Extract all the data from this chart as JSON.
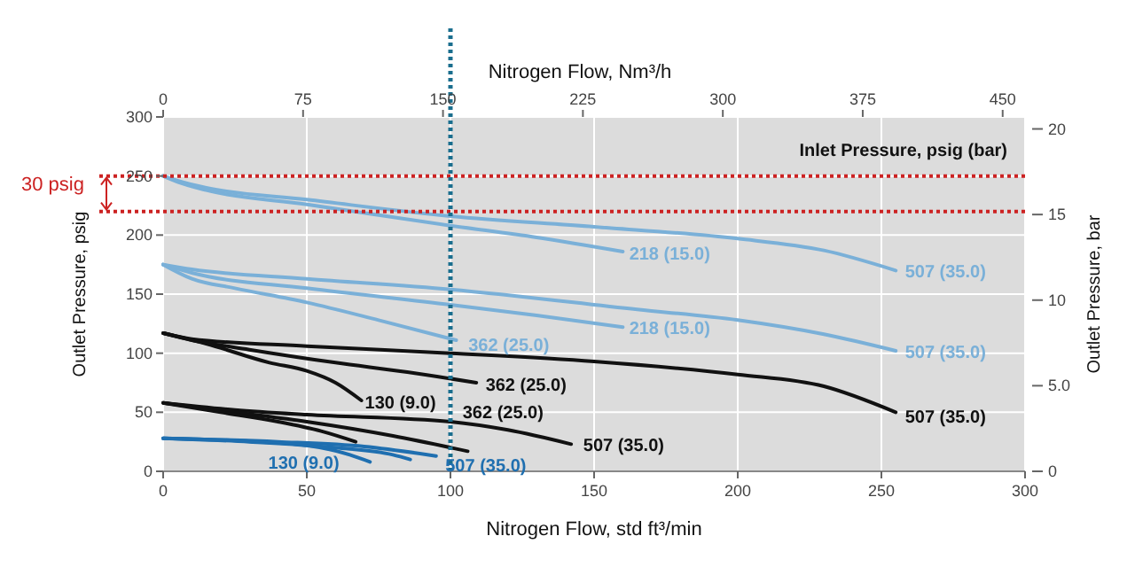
{
  "chart_data": {
    "type": "line",
    "xlabel": "Nitrogen Flow, std ft³/min",
    "x2label": "Nitrogen Flow, Nm³/h",
    "ylabel": "Outlet Pressure, psig",
    "y2label": "Outlet Pressure, bar",
    "xlim": [
      0,
      300
    ],
    "xticks": [
      0,
      50,
      100,
      150,
      200,
      250,
      300
    ],
    "x2lim": [
      0,
      462
    ],
    "x2ticks": [
      0,
      75,
      150,
      225,
      300,
      375,
      450
    ],
    "ylim": [
      0,
      300
    ],
    "yticks": [
      0,
      50,
      100,
      150,
      200,
      250,
      300
    ],
    "y2lim": [
      0,
      20.7
    ],
    "y2ticks": [
      0,
      {
        "value": 5,
        "label": "5.0"
      },
      10,
      15,
      20
    ],
    "grid": true,
    "line_style": "solid",
    "series": [
      {
        "color": "#7ab0d8",
        "x": [
          0,
          5,
          15,
          50,
          100,
          130,
          160
        ],
        "values": [
          250,
          245,
          238,
          226,
          208,
          198,
          186
        ]
      },
      {
        "color": "#7ab0d8",
        "x": [
          0,
          5,
          15,
          50,
          100,
          150,
          200,
          230,
          255
        ],
        "values": [
          250,
          246,
          240,
          230,
          216,
          207,
          197,
          187,
          170
        ]
      },
      {
        "color": "#7ab0d8",
        "x": [
          0,
          10,
          50,
          100,
          165,
          200,
          230,
          255
        ],
        "values": [
          175,
          171,
          163,
          154,
          137,
          128,
          116,
          102
        ]
      },
      {
        "color": "#7ab0d8",
        "x": [
          0,
          10,
          50,
          100,
          130,
          160
        ],
        "values": [
          175,
          168,
          155,
          141,
          132,
          122
        ]
      },
      {
        "color": "#7ab0d8",
        "x": [
          0,
          10,
          25,
          50,
          75,
          102
        ],
        "values": [
          175,
          163,
          155,
          143,
          128,
          111
        ]
      },
      {
        "color": "#111111",
        "x": [
          0,
          10,
          50,
          100,
          150,
          200,
          230,
          255
        ],
        "values": [
          117,
          112,
          106,
          100,
          93,
          82,
          72,
          50
        ]
      },
      {
        "color": "#111111",
        "x": [
          0,
          10,
          30,
          60,
          85,
          109
        ],
        "values": [
          117,
          111,
          103,
          92,
          84,
          75
        ]
      },
      {
        "color": "#111111",
        "x": [
          0,
          15,
          37,
          50,
          60,
          69
        ],
        "values": [
          117,
          108,
          92,
          85,
          75,
          60
        ]
      },
      {
        "color": "#111111",
        "x": [
          0,
          25,
          50,
          100,
          120,
          142
        ],
        "values": [
          58,
          52,
          48,
          42,
          35,
          23
        ]
      },
      {
        "color": "#111111",
        "x": [
          0,
          25,
          50,
          80,
          106
        ],
        "values": [
          58,
          50,
          42,
          30,
          17
        ]
      },
      {
        "color": "#111111",
        "x": [
          0,
          20,
          40,
          55,
          67
        ],
        "values": [
          58,
          50,
          42,
          34,
          25
        ]
      },
      {
        "color": "#1f6fb0",
        "x": [
          0,
          25,
          50,
          65,
          72
        ],
        "values": [
          28,
          26,
          22,
          14,
          8
        ]
      },
      {
        "color": "#1f6fb0",
        "x": [
          0,
          30,
          60,
          80,
          86
        ],
        "values": [
          28,
          25,
          20,
          14,
          10
        ]
      },
      {
        "color": "#1f6fb0",
        "x": [
          0,
          40,
          70,
          95
        ],
        "values": [
          28,
          25,
          21,
          13
        ]
      }
    ],
    "ref_lines": [
      {
        "axis": "y",
        "value": 250,
        "color": "#cc2222",
        "line_style": "dotted"
      },
      {
        "axis": "y",
        "value": 220,
        "color": "#cc2222",
        "line_style": "dotted"
      },
      {
        "axis": "x",
        "value": 100,
        "color": "#1a6e8e",
        "line_style": "dotted"
      }
    ],
    "annotations": [
      "Inlet Pressure, psig (bar)",
      "30 psig",
      {
        "text": "218 (15.0)",
        "x": 161,
        "y": 185
      },
      {
        "text": "507 (35.0)",
        "x": 257,
        "y": 170
      },
      {
        "text": "362 (25.0)",
        "x": 105,
        "y": 108
      },
      {
        "text": "218 (15.0)",
        "x": 161,
        "y": 122
      },
      {
        "text": "507 (35.0)",
        "x": 257,
        "y": 102
      },
      {
        "text": "130 (9.0)",
        "x": 69,
        "y": 59
      },
      {
        "text": "362 (25.0)",
        "x": 111,
        "y": 74
      },
      {
        "text": "362 (25.0)",
        "x": 103,
        "y": 51
      },
      {
        "text": "507 (35.0)",
        "x": 145,
        "y": 23
      },
      {
        "text": "507 (35.0)",
        "x": 257,
        "y": 47
      },
      {
        "text": "130 (9.0)",
        "x": 65,
        "y": 14
      },
      {
        "text": "507 (35.0)",
        "x": 97,
        "y": 6
      }
    ]
  }
}
